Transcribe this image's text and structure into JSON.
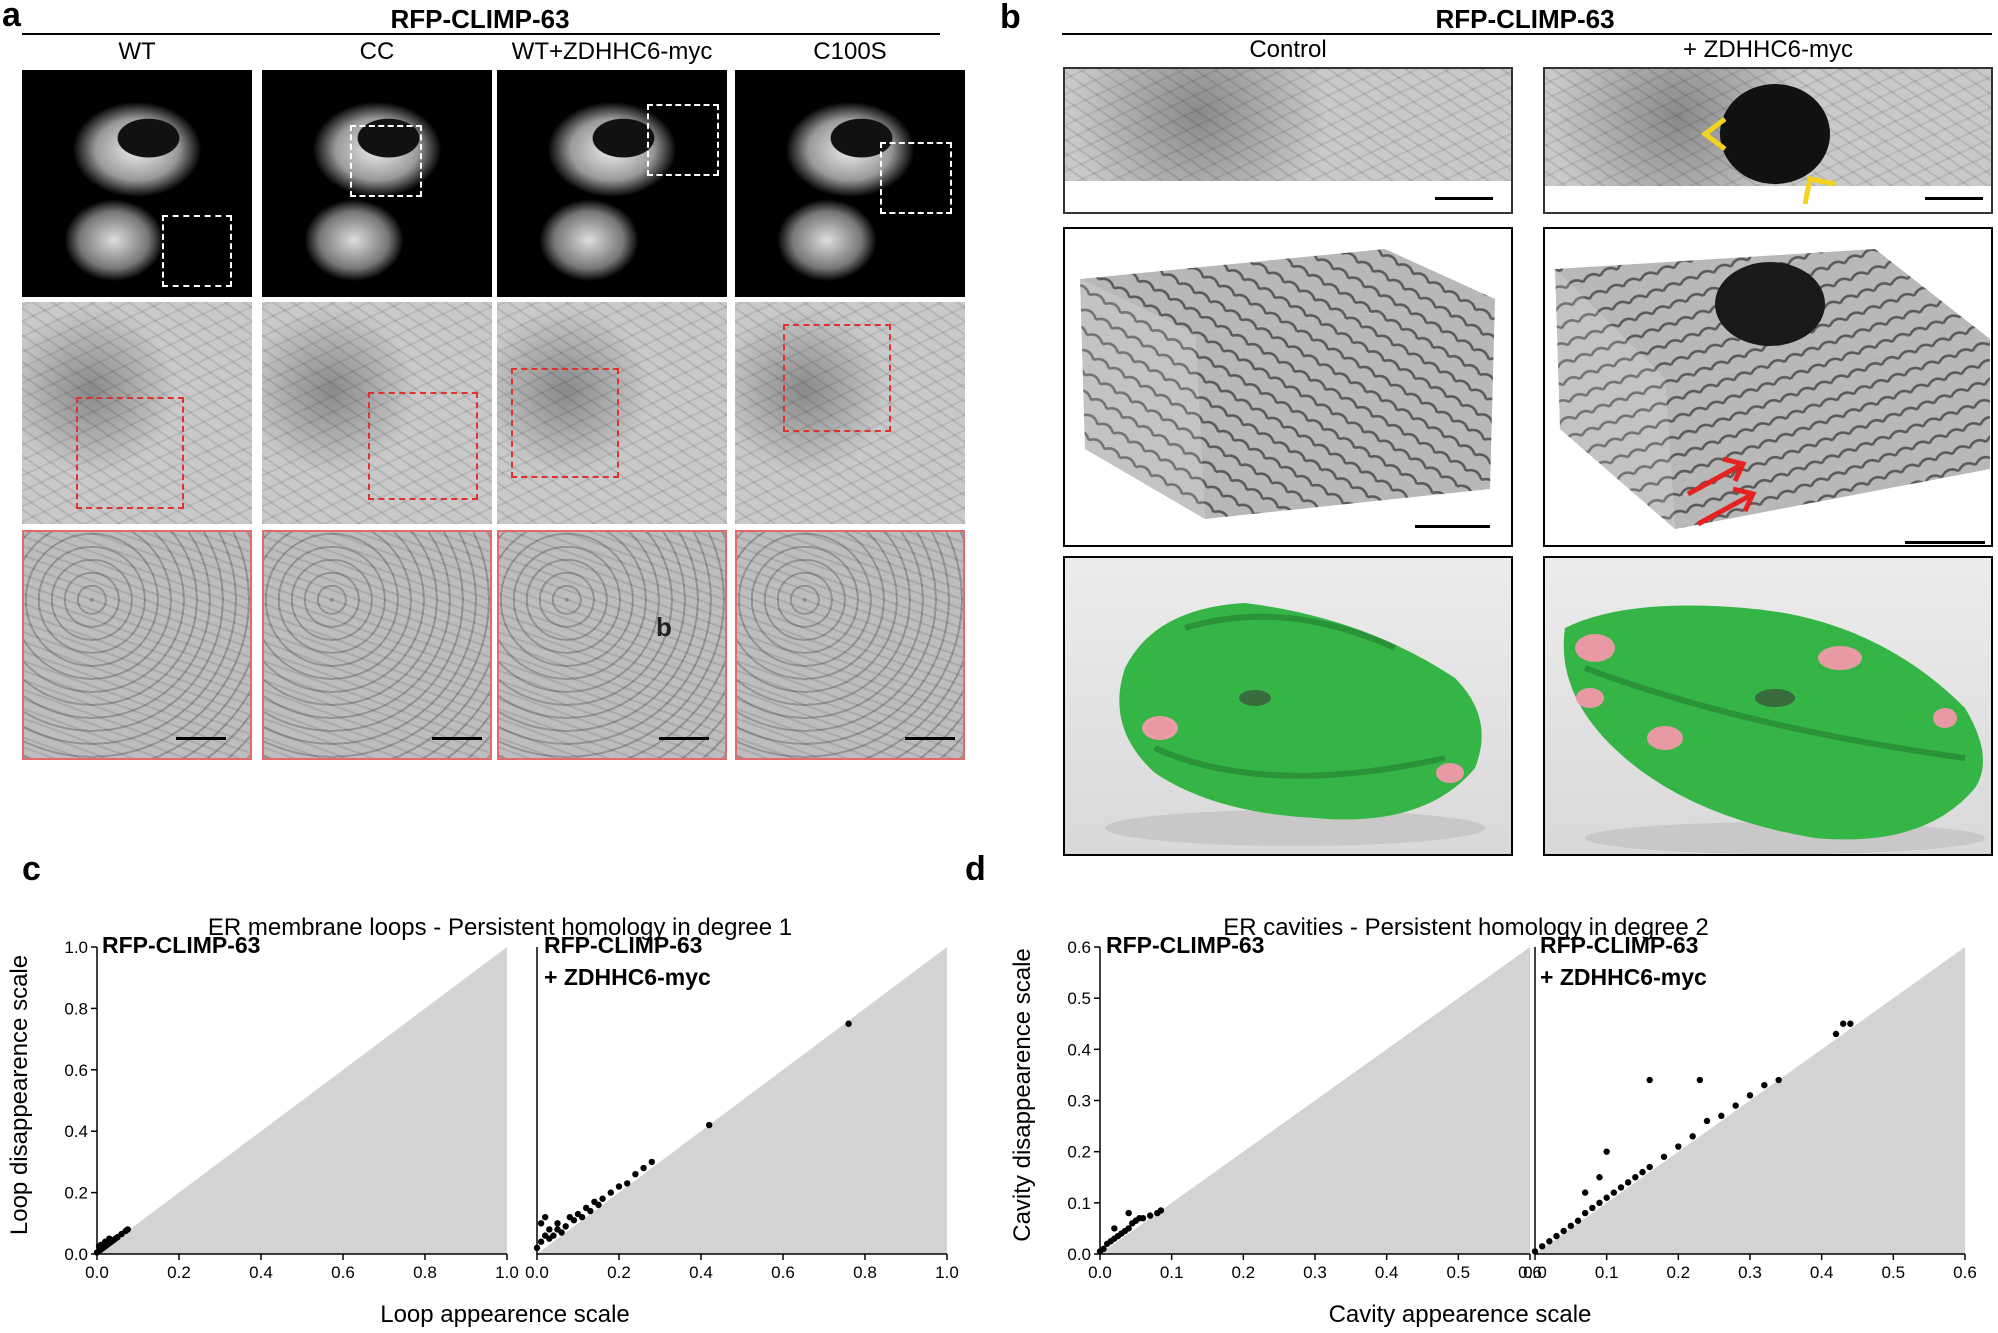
{
  "panel_a": {
    "label": "a",
    "title": "RFP-CLIMP-63",
    "columns": [
      "WT",
      "CC",
      "WT+ZDHHC6-myc",
      "C100S"
    ],
    "inset_letter": "b"
  },
  "panel_b": {
    "label": "b",
    "title": "RFP-CLIMP-63",
    "columns": [
      "Control",
      "+ ZDHHC6-myc"
    ]
  },
  "panel_c": {
    "label": "c",
    "title": "ER membrane loops - Persistent homology in degree 1",
    "ylabel": "Loop disappearence scale",
    "xlabel": "Loop appearence scale",
    "left_plot_label": "RFP-CLIMP-63",
    "right_plot_label_1": "RFP-CLIMP-63",
    "right_plot_label_2": "+ ZDHHC6-myc"
  },
  "panel_d": {
    "label": "d",
    "title": "ER cavities - Persistent homology in degree 2",
    "ylabel": "Cavity disappearence scale",
    "xlabel": "Cavity appearence scale",
    "left_plot_label": "RFP-CLIMP-63",
    "right_plot_label_1": "RFP-CLIMP-63",
    "right_plot_label_2": "+ ZDHHC6-myc"
  },
  "chart_data": [
    {
      "type": "scatter",
      "name": "c-left",
      "xlim": [
        0,
        1.0
      ],
      "ylim": [
        0,
        1.0
      ],
      "xticks": [
        "0.0",
        "0.2",
        "0.4",
        "0.6",
        "0.8",
        "1.0"
      ],
      "yticks": [
        "0.0",
        "0.2",
        "0.4",
        "0.6",
        "0.8",
        "1.0"
      ],
      "points": [
        [
          0.0,
          0.005
        ],
        [
          0.005,
          0.01
        ],
        [
          0.01,
          0.015
        ],
        [
          0.015,
          0.02
        ],
        [
          0.02,
          0.025
        ],
        [
          0.025,
          0.03
        ],
        [
          0.03,
          0.035
        ],
        [
          0.035,
          0.04
        ],
        [
          0.04,
          0.045
        ],
        [
          0.045,
          0.05
        ],
        [
          0.05,
          0.055
        ],
        [
          0.06,
          0.065
        ],
        [
          0.07,
          0.075
        ],
        [
          0.075,
          0.08
        ],
        [
          0.01,
          0.03
        ],
        [
          0.02,
          0.04
        ],
        [
          0.005,
          0.025
        ],
        [
          0.03,
          0.05
        ]
      ]
    },
    {
      "type": "scatter",
      "name": "c-right",
      "xlim": [
        0,
        1.0
      ],
      "ylim": [
        0,
        1.0
      ],
      "xticks": [
        "0.0",
        "0.2",
        "0.4",
        "0.6",
        "0.8",
        "1.0"
      ],
      "points": [
        [
          0.0,
          0.02
        ],
        [
          0.01,
          0.04
        ],
        [
          0.02,
          0.06
        ],
        [
          0.03,
          0.08
        ],
        [
          0.01,
          0.1
        ],
        [
          0.02,
          0.12
        ],
        [
          0.05,
          0.1
        ],
        [
          0.08,
          0.12
        ],
        [
          0.1,
          0.13
        ],
        [
          0.12,
          0.15
        ],
        [
          0.14,
          0.17
        ],
        [
          0.16,
          0.18
        ],
        [
          0.18,
          0.2
        ],
        [
          0.2,
          0.22
        ],
        [
          0.22,
          0.23
        ],
        [
          0.24,
          0.26
        ],
        [
          0.26,
          0.28
        ],
        [
          0.28,
          0.3
        ],
        [
          0.42,
          0.42
        ],
        [
          0.76,
          0.75
        ],
        [
          0.05,
          0.08
        ],
        [
          0.07,
          0.09
        ],
        [
          0.09,
          0.11
        ],
        [
          0.11,
          0.12
        ],
        [
          0.13,
          0.14
        ],
        [
          0.15,
          0.16
        ],
        [
          0.03,
          0.05
        ],
        [
          0.04,
          0.06
        ],
        [
          0.06,
          0.07
        ]
      ]
    },
    {
      "type": "scatter",
      "name": "d-left",
      "xlim": [
        0,
        0.6
      ],
      "ylim": [
        0,
        0.6
      ],
      "xticks": [
        "0.0",
        "0.1",
        "0.2",
        "0.3",
        "0.4",
        "0.5",
        "0.6"
      ],
      "yticks": [
        "0.0",
        "0.1",
        "0.2",
        "0.3",
        "0.4",
        "0.5",
        "0.6"
      ],
      "points": [
        [
          0.0,
          0.005
        ],
        [
          0.005,
          0.01
        ],
        [
          0.01,
          0.02
        ],
        [
          0.015,
          0.025
        ],
        [
          0.02,
          0.03
        ],
        [
          0.025,
          0.035
        ],
        [
          0.03,
          0.04
        ],
        [
          0.035,
          0.045
        ],
        [
          0.04,
          0.05
        ],
        [
          0.045,
          0.06
        ],
        [
          0.05,
          0.065
        ],
        [
          0.055,
          0.07
        ],
        [
          0.06,
          0.07
        ],
        [
          0.07,
          0.075
        ],
        [
          0.08,
          0.08
        ],
        [
          0.085,
          0.085
        ],
        [
          0.04,
          0.08
        ],
        [
          0.02,
          0.05
        ]
      ]
    },
    {
      "type": "scatter",
      "name": "d-right",
      "xlim": [
        0,
        0.6
      ],
      "ylim": [
        0,
        0.6
      ],
      "xticks": [
        "0.0",
        "0.1",
        "0.2",
        "0.3",
        "0.4",
        "0.5",
        "0.6"
      ],
      "points": [
        [
          0.0,
          0.005
        ],
        [
          0.01,
          0.015
        ],
        [
          0.02,
          0.025
        ],
        [
          0.03,
          0.035
        ],
        [
          0.04,
          0.045
        ],
        [
          0.05,
          0.055
        ],
        [
          0.06,
          0.065
        ],
        [
          0.07,
          0.08
        ],
        [
          0.08,
          0.09
        ],
        [
          0.09,
          0.1
        ],
        [
          0.1,
          0.11
        ],
        [
          0.11,
          0.12
        ],
        [
          0.12,
          0.13
        ],
        [
          0.13,
          0.14
        ],
        [
          0.14,
          0.15
        ],
        [
          0.15,
          0.16
        ],
        [
          0.16,
          0.17
        ],
        [
          0.18,
          0.19
        ],
        [
          0.2,
          0.21
        ],
        [
          0.22,
          0.23
        ],
        [
          0.24,
          0.26
        ],
        [
          0.26,
          0.27
        ],
        [
          0.28,
          0.29
        ],
        [
          0.3,
          0.31
        ],
        [
          0.32,
          0.33
        ],
        [
          0.34,
          0.34
        ],
        [
          0.16,
          0.34
        ],
        [
          0.23,
          0.34
        ],
        [
          0.42,
          0.43
        ],
        [
          0.43,
          0.45
        ],
        [
          0.44,
          0.45
        ],
        [
          0.07,
          0.12
        ],
        [
          0.1,
          0.2
        ],
        [
          0.09,
          0.15
        ]
      ]
    }
  ]
}
